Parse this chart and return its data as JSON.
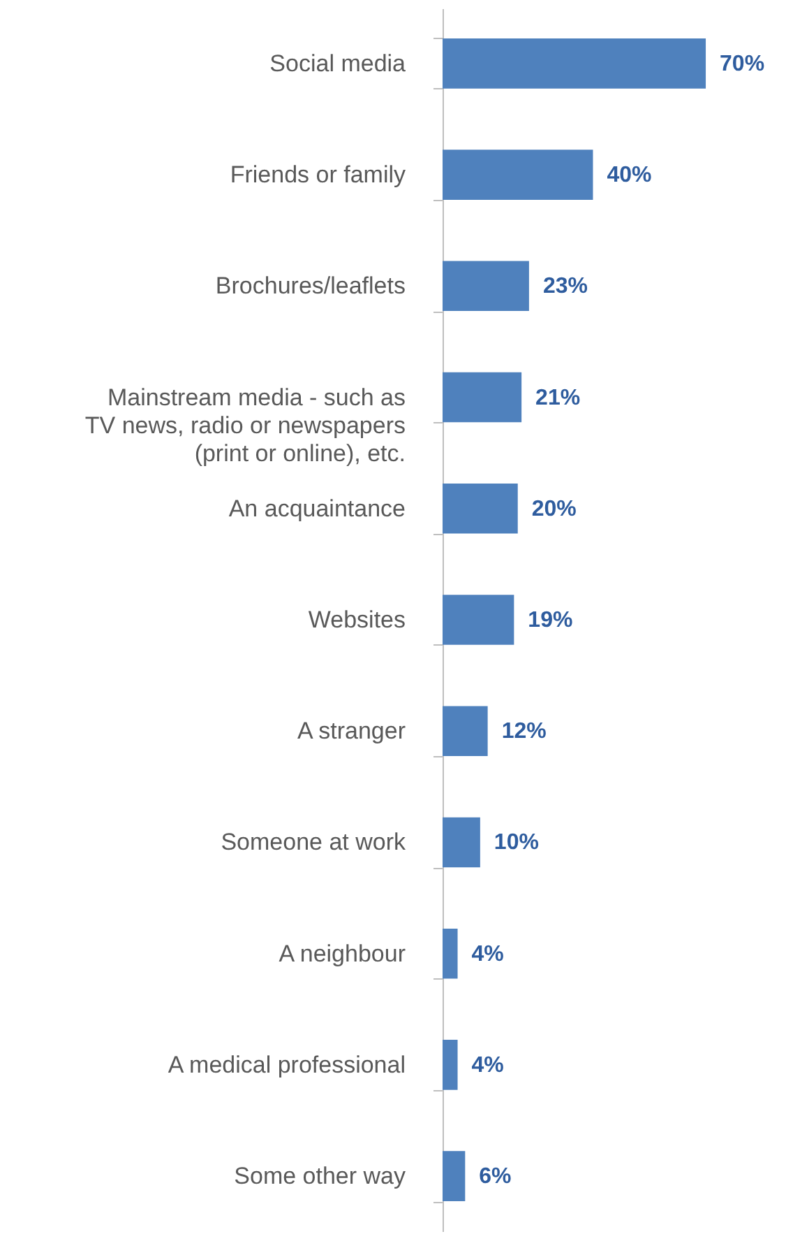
{
  "chart_data": {
    "type": "bar",
    "orientation": "horizontal",
    "categories": [
      "Social media",
      "Friends or family",
      "Brochures/leaflets",
      "Mainstream media - such as TV news, radio or newspapers (print or online), etc.",
      "An acquaintance",
      "Websites",
      "A stranger",
      "Someone at work",
      "A neighbour",
      "A medical professional",
      "Some other way"
    ],
    "values": [
      70,
      40,
      23,
      21,
      20,
      19,
      12,
      10,
      4,
      4,
      6
    ],
    "value_labels": [
      "70%",
      "40%",
      "23%",
      "21%",
      "20%",
      "19%",
      "12%",
      "10%",
      "4%",
      "4%",
      "6%"
    ],
    "color": "#4f81bd",
    "tick_labels": "y"
  }
}
